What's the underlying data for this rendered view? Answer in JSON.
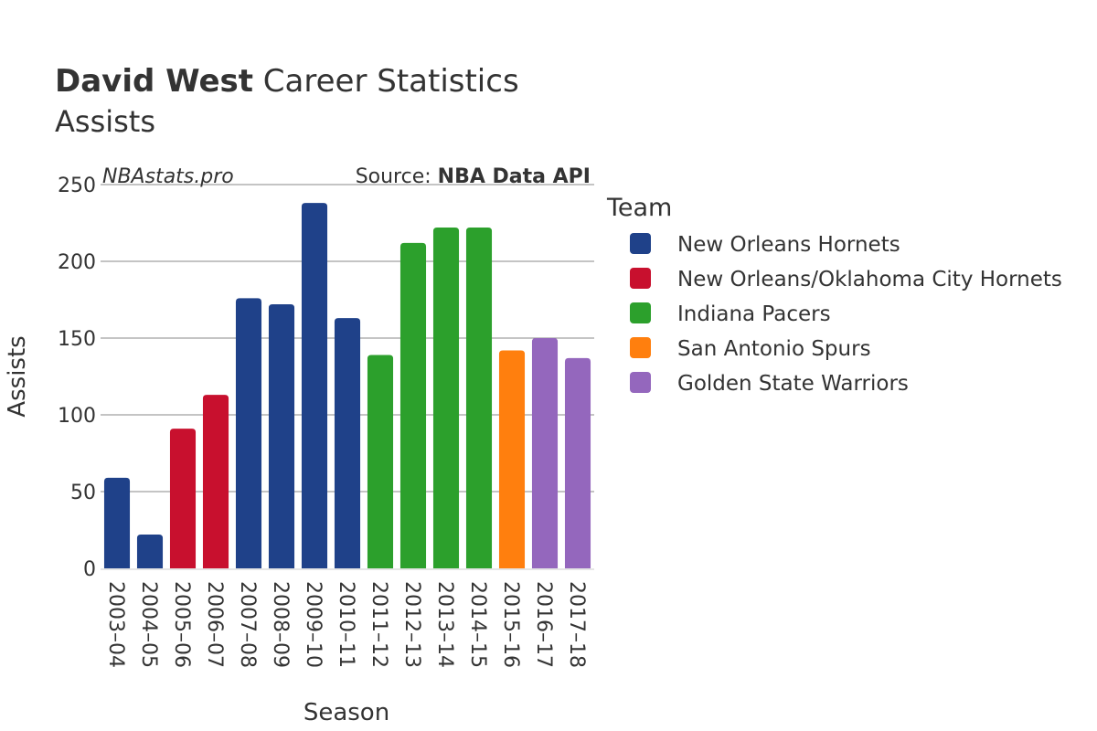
{
  "chart_data": {
    "type": "bar",
    "title_bold": "David West",
    "title_rest": " Career Statistics",
    "subtitle": "Assists",
    "watermark": "NBAstats.pro",
    "source_prefix": "Source: ",
    "source_bold": "NBA Data API",
    "xlabel": "Season",
    "ylabel": "Assists",
    "ylim": [
      0,
      250
    ],
    "yticks": [
      0,
      50,
      100,
      150,
      200,
      250
    ],
    "grid": true,
    "legend_title": "Team",
    "legend_position": "right",
    "teams": [
      {
        "name": "New Orleans Hornets",
        "color": "#1f4189"
      },
      {
        "name": "New Orleans/Oklahoma City Hornets",
        "color": "#c8102e"
      },
      {
        "name": "Indiana Pacers",
        "color": "#2ca02c"
      },
      {
        "name": "San Antonio Spurs",
        "color": "#ff7f0e"
      },
      {
        "name": "Golden State Warriors",
        "color": "#9467bd"
      }
    ],
    "categories": [
      "2003–04",
      "2004–05",
      "2005–06",
      "2006–07",
      "2007–08",
      "2008–09",
      "2009–10",
      "2010–11",
      "2011–12",
      "2012–13",
      "2013–14",
      "2014–15",
      "2015–16",
      "2016–17",
      "2017–18"
    ],
    "values": [
      59,
      22,
      91,
      113,
      176,
      172,
      238,
      163,
      139,
      212,
      222,
      222,
      142,
      150,
      137
    ],
    "bar_team": [
      0,
      0,
      1,
      1,
      0,
      0,
      0,
      0,
      2,
      2,
      2,
      2,
      3,
      4,
      4
    ]
  }
}
